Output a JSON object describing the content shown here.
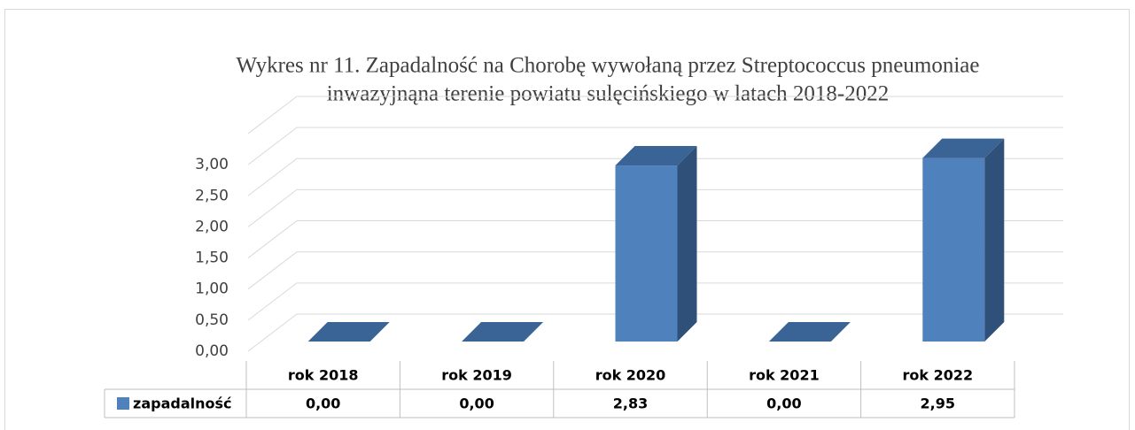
{
  "chart_data": {
    "type": "bar3d",
    "title": "Wykres nr 11. Zapadalność na Chorobę wywołaną przez Streptococcus pneumoniae",
    "subtitle": "inwazyjnąna terenie powiatu sulęcińskiego w latach 2018-2022",
    "categories": [
      "rok 2018",
      "rok 2019",
      "rok 2020",
      "rok 2021",
      "rok 2022"
    ],
    "series": [
      {
        "name": "zapadalność",
        "color": "#4f81bd",
        "values": [
          0,
          0,
          2.83,
          0,
          2.95
        ],
        "value_labels": [
          "0,00",
          "0,00",
          "2,83",
          "0,00",
          "2,95"
        ]
      }
    ],
    "ylim": [
      0,
      3.5
    ],
    "yticks": [
      {
        "value": 0,
        "label": "0,00"
      },
      {
        "value": 0.5,
        "label": "0,50"
      },
      {
        "value": 1,
        "label": "1,00"
      },
      {
        "value": 1.5,
        "label": "1,50"
      },
      {
        "value": 2,
        "label": "2,00"
      },
      {
        "value": 2.5,
        "label": "2,50"
      },
      {
        "value": 3,
        "label": "3,00"
      }
    ],
    "grid": true,
    "legend": "table"
  }
}
